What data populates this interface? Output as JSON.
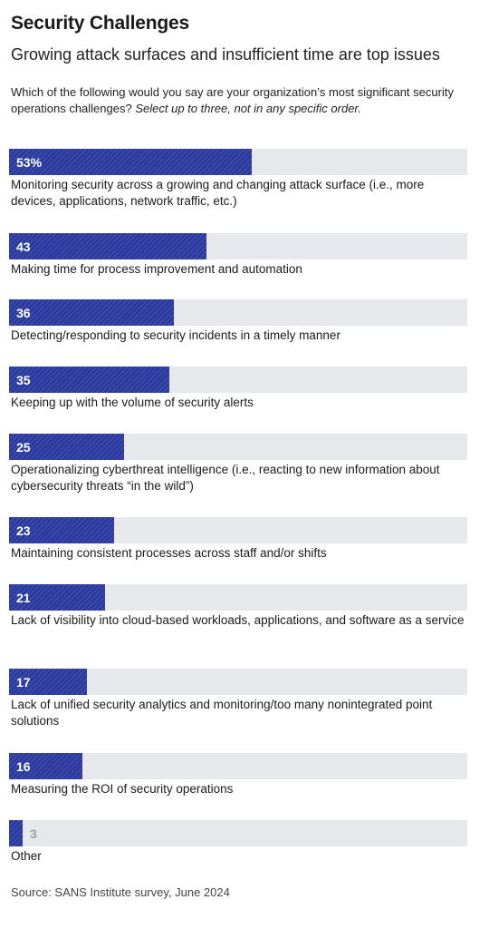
{
  "header": {
    "title": "Security Challenges",
    "subtitle": "Growing attack surfaces and insufficient time are top issues",
    "question": "Which of the following would you say are your organization’s most significant security operations challenges?",
    "instruction": "Select up to three, not in any specific order."
  },
  "colors": {
    "bar": "#2b3a9e",
    "track": "#e6e8ec"
  },
  "chart_data": {
    "type": "bar",
    "orientation": "horizontal",
    "unit": "%",
    "ylim": [
      0,
      100
    ],
    "categories": [
      "Monitoring security across a growing and changing attack surface (i.e., more devices, applications, network traffic, etc.)",
      "Making time for process improvement and automation",
      "Detecting/responding to security incidents in a timely manner",
      "Keeping up with the volume of security alerts",
      "Operationalizing cyberthreat intelligence (i.e., reacting to new information about cybersecurity threats “in the wild”)",
      "Maintaining consistent processes across staff and/or shifts",
      "Lack of visibility into cloud-based workloads, applications, and software as a service",
      "Lack of unified security analytics and monitoring/too many nonintegrated point solutions",
      "Measuring the ROI of security operations",
      "Other"
    ],
    "values": [
      53,
      43,
      36,
      35,
      25,
      23,
      21,
      17,
      16,
      3
    ],
    "value_labels": [
      "53%",
      "43",
      "36",
      "35",
      "25",
      "23",
      "21",
      "17",
      "16",
      "3"
    ]
  },
  "footer": {
    "source": "Source: SANS Institute survey, June 2024"
  }
}
